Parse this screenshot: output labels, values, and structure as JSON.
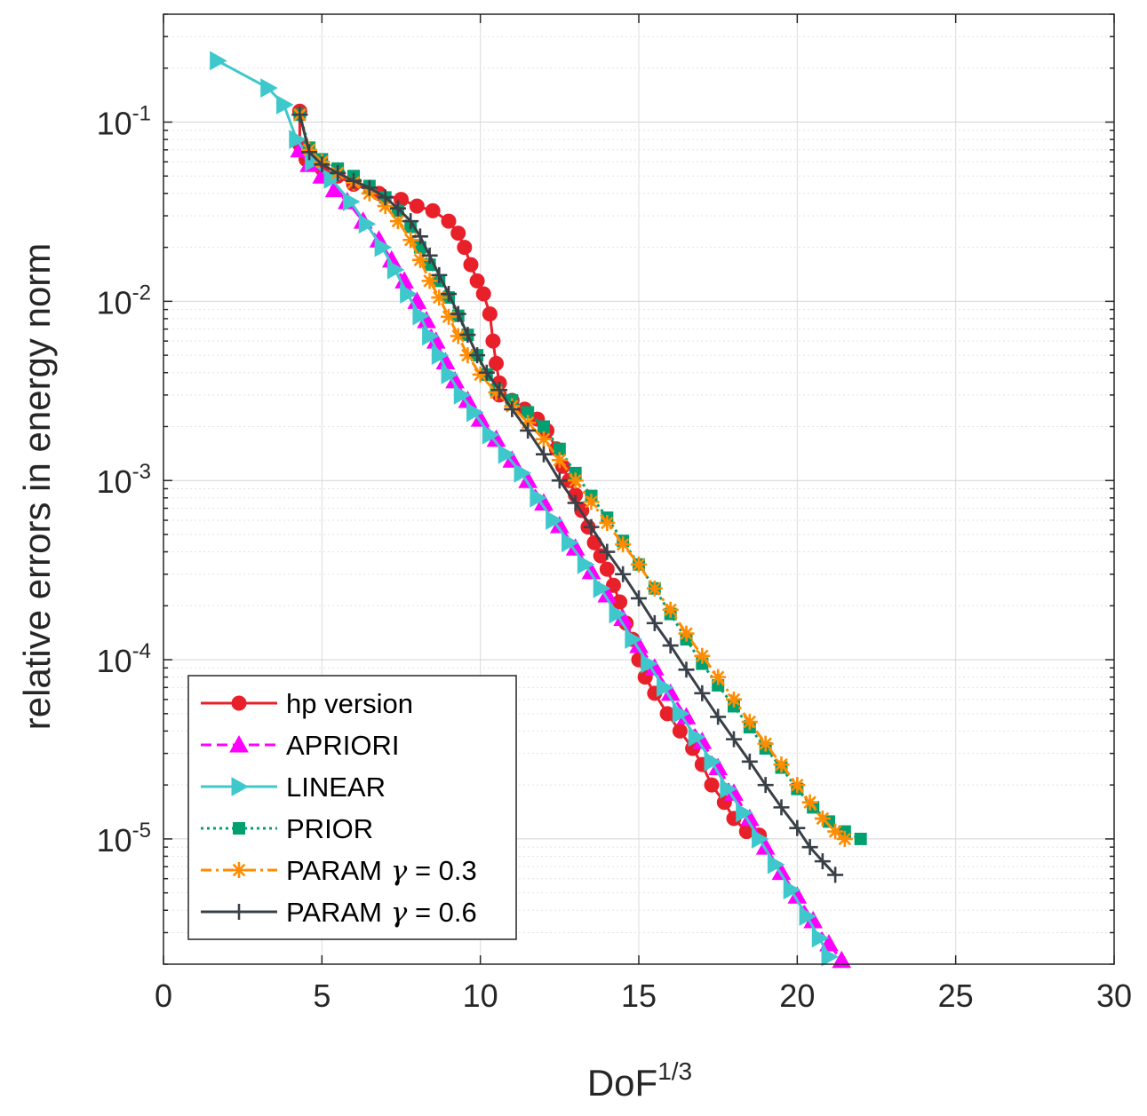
{
  "chart_data": {
    "type": "line",
    "xlabel": "DoF",
    "xlabel_sup": "1/3",
    "ylabel": "relative errors in energy norm",
    "xlim": [
      0,
      30
    ],
    "ylim": [
      2e-06,
      0.4
    ],
    "yscale": "log",
    "grid": true,
    "legend_position": "bottom-left",
    "x_ticks": [
      {
        "value": 0,
        "label": "0"
      },
      {
        "value": 5,
        "label": "5"
      },
      {
        "value": 10,
        "label": "10"
      },
      {
        "value": 15,
        "label": "15"
      },
      {
        "value": 20,
        "label": "20"
      },
      {
        "value": 25,
        "label": "25"
      },
      {
        "value": 30,
        "label": "30"
      }
    ],
    "y_ticks": [
      {
        "value": 1e-05,
        "base": "10",
        "exp": "-5"
      },
      {
        "value": 0.0001,
        "base": "10",
        "exp": "-4"
      },
      {
        "value": 0.001,
        "base": "10",
        "exp": "-3"
      },
      {
        "value": 0.01,
        "base": "10",
        "exp": "-2"
      },
      {
        "value": 0.1,
        "base": "10",
        "exp": "-1"
      }
    ],
    "series": [
      {
        "name": "hp version",
        "gamma_value": "",
        "color": "#e8202a",
        "dash": "",
        "marker": "circle",
        "points": [
          [
            4.3,
            0.115
          ],
          [
            4.3,
            0.075
          ],
          [
            4.5,
            0.062
          ],
          [
            5.0,
            0.055
          ],
          [
            5.5,
            0.05
          ],
          [
            6.0,
            0.045
          ],
          [
            6.8,
            0.04
          ],
          [
            7.5,
            0.037
          ],
          [
            8.0,
            0.034
          ],
          [
            8.5,
            0.032
          ],
          [
            9.0,
            0.028
          ],
          [
            9.3,
            0.024
          ],
          [
            9.5,
            0.02
          ],
          [
            9.7,
            0.016
          ],
          [
            9.9,
            0.013
          ],
          [
            10.1,
            0.011
          ],
          [
            10.3,
            0.0085
          ],
          [
            10.4,
            0.006
          ],
          [
            10.5,
            0.0045
          ],
          [
            10.6,
            0.0035
          ],
          [
            10.6,
            0.003
          ],
          [
            11.0,
            0.0028
          ],
          [
            11.4,
            0.0025
          ],
          [
            11.8,
            0.0022
          ],
          [
            12.1,
            0.0019
          ],
          [
            12.4,
            0.0015
          ],
          [
            12.6,
            0.0012
          ],
          [
            12.8,
            0.001
          ],
          [
            13.0,
            0.00083
          ],
          [
            13.2,
            0.00068
          ],
          [
            13.4,
            0.00055
          ],
          [
            13.6,
            0.00045
          ],
          [
            13.8,
            0.00038
          ],
          [
            14.0,
            0.00032
          ],
          [
            14.2,
            0.00026
          ],
          [
            14.4,
            0.00021
          ],
          [
            14.6,
            0.00016
          ],
          [
            14.8,
            0.00013
          ],
          [
            15.0,
            0.0001
          ],
          [
            15.2,
            8e-05
          ],
          [
            15.5,
            6.5e-05
          ],
          [
            15.9,
            5e-05
          ],
          [
            16.3,
            4e-05
          ],
          [
            16.7,
            3.2e-05
          ],
          [
            17.0,
            2.6e-05
          ],
          [
            17.3,
            2e-05
          ],
          [
            17.7,
            1.6e-05
          ],
          [
            18.0,
            1.3e-05
          ],
          [
            18.4,
            1.1e-05
          ],
          [
            18.8,
            1.05e-05
          ]
        ]
      },
      {
        "name": "APRIORI",
        "gamma_value": "",
        "color": "#ff00ff",
        "dash": "12,6",
        "marker": "tri-up",
        "points": [
          [
            4.3,
            0.07
          ],
          [
            4.6,
            0.058
          ],
          [
            5.0,
            0.05
          ],
          [
            5.4,
            0.042
          ],
          [
            5.8,
            0.036
          ],
          [
            6.3,
            0.028
          ],
          [
            6.8,
            0.022
          ],
          [
            7.2,
            0.017
          ],
          [
            7.6,
            0.013
          ],
          [
            8.0,
            0.01
          ],
          [
            8.3,
            0.0078
          ],
          [
            8.6,
            0.006
          ],
          [
            8.9,
            0.0046
          ],
          [
            9.2,
            0.0036
          ],
          [
            9.6,
            0.0028
          ],
          [
            10.0,
            0.0022
          ],
          [
            10.5,
            0.0017
          ],
          [
            11.0,
            0.0013
          ],
          [
            11.5,
            0.001
          ],
          [
            12.0,
            0.00075
          ],
          [
            12.5,
            0.00056
          ],
          [
            13.0,
            0.00042
          ],
          [
            13.5,
            0.00031
          ],
          [
            14.0,
            0.00023
          ],
          [
            14.5,
            0.00017
          ],
          [
            15.0,
            0.00012
          ],
          [
            15.5,
            9e-05
          ],
          [
            16.0,
            6.5e-05
          ],
          [
            16.5,
            4.8e-05
          ],
          [
            17.0,
            3.5e-05
          ],
          [
            17.5,
            2.5e-05
          ],
          [
            18.0,
            1.8e-05
          ],
          [
            18.5,
            1.3e-05
          ],
          [
            19.0,
            9e-06
          ],
          [
            19.5,
            6.5e-06
          ],
          [
            20.0,
            4.8e-06
          ],
          [
            20.5,
            3.5e-06
          ],
          [
            21.0,
            2.6e-06
          ],
          [
            21.4,
            2.1e-06
          ]
        ]
      },
      {
        "name": "LINEAR",
        "gamma_value": "",
        "color": "#3ec8cc",
        "dash": "",
        "marker": "tri-right",
        "points": [
          [
            1.7,
            0.22
          ],
          [
            3.3,
            0.155
          ],
          [
            3.8,
            0.125
          ],
          [
            4.2,
            0.08
          ],
          [
            4.7,
            0.06
          ],
          [
            5.3,
            0.048
          ],
          [
            5.9,
            0.036
          ],
          [
            6.4,
            0.027
          ],
          [
            6.9,
            0.02
          ],
          [
            7.3,
            0.015
          ],
          [
            7.7,
            0.011
          ],
          [
            8.1,
            0.0083
          ],
          [
            8.4,
            0.0064
          ],
          [
            8.7,
            0.005
          ],
          [
            9.0,
            0.0039
          ],
          [
            9.4,
            0.003
          ],
          [
            9.8,
            0.0024
          ],
          [
            10.3,
            0.0018
          ],
          [
            10.8,
            0.0014
          ],
          [
            11.3,
            0.0011
          ],
          [
            11.8,
            0.0008
          ],
          [
            12.3,
            0.0006
          ],
          [
            12.8,
            0.00045
          ],
          [
            13.3,
            0.00034
          ],
          [
            13.8,
            0.00025
          ],
          [
            14.3,
            0.00018
          ],
          [
            14.8,
            0.00013
          ],
          [
            15.3,
            9.5e-05
          ],
          [
            15.8,
            7e-05
          ],
          [
            16.3,
            5e-05
          ],
          [
            16.8,
            3.7e-05
          ],
          [
            17.3,
            2.7e-05
          ],
          [
            17.8,
            1.9e-05
          ],
          [
            18.3,
            1.4e-05
          ],
          [
            18.8,
            1e-05
          ],
          [
            19.3,
            7.2e-06
          ],
          [
            19.8,
            5.2e-06
          ],
          [
            20.3,
            3.7e-06
          ],
          [
            20.7,
            2.8e-06
          ],
          [
            21.0,
            2.2e-06
          ]
        ]
      },
      {
        "name": "PRIOR",
        "gamma_value": "",
        "color": "#00a070",
        "dash": "3,4",
        "marker": "square",
        "points": [
          [
            4.3,
            0.11
          ],
          [
            4.6,
            0.072
          ],
          [
            5.0,
            0.062
          ],
          [
            5.5,
            0.055
          ],
          [
            6.0,
            0.05
          ],
          [
            6.5,
            0.044
          ],
          [
            7.0,
            0.038
          ],
          [
            7.4,
            0.032
          ],
          [
            7.8,
            0.026
          ],
          [
            8.1,
            0.02
          ],
          [
            8.4,
            0.016
          ],
          [
            8.7,
            0.013
          ],
          [
            9.0,
            0.0105
          ],
          [
            9.3,
            0.0083
          ],
          [
            9.6,
            0.0065
          ],
          [
            9.9,
            0.005
          ],
          [
            10.2,
            0.0039
          ],
          [
            10.5,
            0.0032
          ],
          [
            11.0,
            0.0028
          ],
          [
            11.5,
            0.0024
          ],
          [
            12.0,
            0.002
          ],
          [
            12.5,
            0.0015
          ],
          [
            13.0,
            0.0011
          ],
          [
            13.5,
            0.00082
          ],
          [
            14.0,
            0.00062
          ],
          [
            14.5,
            0.00046
          ],
          [
            15.0,
            0.00034
          ],
          [
            15.5,
            0.00025
          ],
          [
            16.0,
            0.00018
          ],
          [
            16.5,
            0.00013
          ],
          [
            17.0,
            9.5e-05
          ],
          [
            17.5,
            7.2e-05
          ],
          [
            18.0,
            5.5e-05
          ],
          [
            18.5,
            4.2e-05
          ],
          [
            19.0,
            3.2e-05
          ],
          [
            19.5,
            2.5e-05
          ],
          [
            20.0,
            1.9e-05
          ],
          [
            20.5,
            1.5e-05
          ],
          [
            21.0,
            1.25e-05
          ],
          [
            21.5,
            1.1e-05
          ],
          [
            22.0,
            1e-05
          ]
        ]
      },
      {
        "name": "PARAM",
        "gamma_value": "0.3",
        "color": "#ff8c00",
        "dash": "12,5,3,5",
        "marker": "star",
        "points": [
          [
            4.3,
            0.11
          ],
          [
            4.6,
            0.07
          ],
          [
            5.0,
            0.06
          ],
          [
            5.5,
            0.052
          ],
          [
            6.0,
            0.046
          ],
          [
            6.5,
            0.04
          ],
          [
            7.0,
            0.034
          ],
          [
            7.4,
            0.028
          ],
          [
            7.8,
            0.022
          ],
          [
            8.1,
            0.017
          ],
          [
            8.4,
            0.013
          ],
          [
            8.7,
            0.0105
          ],
          [
            9.0,
            0.0082
          ],
          [
            9.3,
            0.0064
          ],
          [
            9.6,
            0.005
          ],
          [
            10.0,
            0.0039
          ],
          [
            10.5,
            0.0031
          ],
          [
            11.0,
            0.0026
          ],
          [
            11.5,
            0.0021
          ],
          [
            12.0,
            0.0017
          ],
          [
            12.5,
            0.0013
          ],
          [
            13.0,
            0.001
          ],
          [
            13.5,
            0.00076
          ],
          [
            14.0,
            0.00058
          ],
          [
            14.5,
            0.00044
          ],
          [
            15.0,
            0.00034
          ],
          [
            15.5,
            0.00025
          ],
          [
            16.0,
            0.00019
          ],
          [
            16.5,
            0.00014
          ],
          [
            17.0,
            0.000105
          ],
          [
            17.5,
            8e-05
          ],
          [
            18.0,
            6e-05
          ],
          [
            18.5,
            4.5e-05
          ],
          [
            19.0,
            3.4e-05
          ],
          [
            19.5,
            2.6e-05
          ],
          [
            20.0,
            2e-05
          ],
          [
            20.4,
            1.6e-05
          ],
          [
            20.8,
            1.3e-05
          ],
          [
            21.2,
            1.1e-05
          ],
          [
            21.5,
            1e-05
          ]
        ]
      },
      {
        "name": "PARAM",
        "gamma_value": "0.6",
        "color": "#3a4048",
        "dash": "",
        "marker": "plus",
        "points": [
          [
            4.3,
            0.11
          ],
          [
            4.6,
            0.068
          ],
          [
            5.0,
            0.058
          ],
          [
            5.5,
            0.052
          ],
          [
            6.0,
            0.047
          ],
          [
            6.5,
            0.043
          ],
          [
            7.0,
            0.038
          ],
          [
            7.4,
            0.033
          ],
          [
            7.8,
            0.028
          ],
          [
            8.1,
            0.023
          ],
          [
            8.4,
            0.018
          ],
          [
            8.7,
            0.014
          ],
          [
            9.0,
            0.011
          ],
          [
            9.3,
            0.0085
          ],
          [
            9.6,
            0.0065
          ],
          [
            9.9,
            0.005
          ],
          [
            10.2,
            0.004
          ],
          [
            10.6,
            0.0032
          ],
          [
            11.0,
            0.0025
          ],
          [
            11.5,
            0.0019
          ],
          [
            12.0,
            0.0014
          ],
          [
            12.5,
            0.001
          ],
          [
            13.0,
            0.00075
          ],
          [
            13.5,
            0.00055
          ],
          [
            14.0,
            0.0004
          ],
          [
            14.5,
            0.0003
          ],
          [
            15.0,
            0.00022
          ],
          [
            15.5,
            0.00016
          ],
          [
            16.0,
            0.00012
          ],
          [
            16.5,
            8.8e-05
          ],
          [
            17.0,
            6.5e-05
          ],
          [
            17.5,
            4.8e-05
          ],
          [
            18.0,
            3.6e-05
          ],
          [
            18.5,
            2.7e-05
          ],
          [
            19.0,
            2e-05
          ],
          [
            19.5,
            1.5e-05
          ],
          [
            20.0,
            1.15e-05
          ],
          [
            20.4,
            9e-06
          ],
          [
            20.8,
            7.5e-06
          ],
          [
            21.2,
            6.3e-06
          ]
        ]
      }
    ]
  }
}
